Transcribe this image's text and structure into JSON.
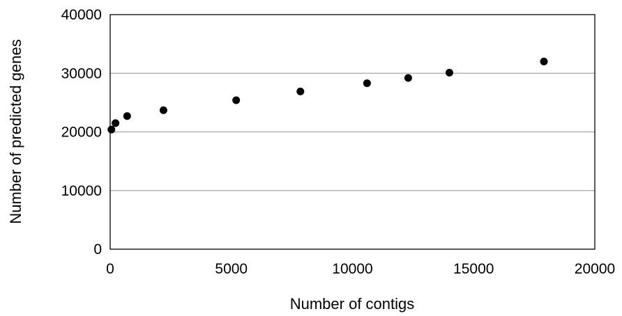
{
  "chart_data": {
    "type": "scatter",
    "title": "",
    "xlabel": "Number of contigs",
    "ylabel": "Number of predicted genes",
    "xlim": [
      0,
      20000
    ],
    "ylim": [
      0,
      40000
    ],
    "xticks": [
      0,
      5000,
      10000,
      15000,
      20000
    ],
    "yticks": [
      0,
      10000,
      20000,
      30000,
      40000
    ],
    "grid": "horizontal",
    "legend": "none",
    "series": [
      {
        "color": "#000000",
        "points": [
          {
            "x": 50,
            "y": 20400
          },
          {
            "x": 220,
            "y": 21500
          },
          {
            "x": 700,
            "y": 22700
          },
          {
            "x": 2200,
            "y": 23700
          },
          {
            "x": 5200,
            "y": 25400
          },
          {
            "x": 7850,
            "y": 26900
          },
          {
            "x": 10600,
            "y": 28300
          },
          {
            "x": 12300,
            "y": 29200
          },
          {
            "x": 14000,
            "y": 30100
          },
          {
            "x": 17900,
            "y": 32000
          }
        ]
      }
    ],
    "colors": {
      "grid": "#a6a6a6",
      "frame": "#000000",
      "marker": "#000000"
    }
  }
}
